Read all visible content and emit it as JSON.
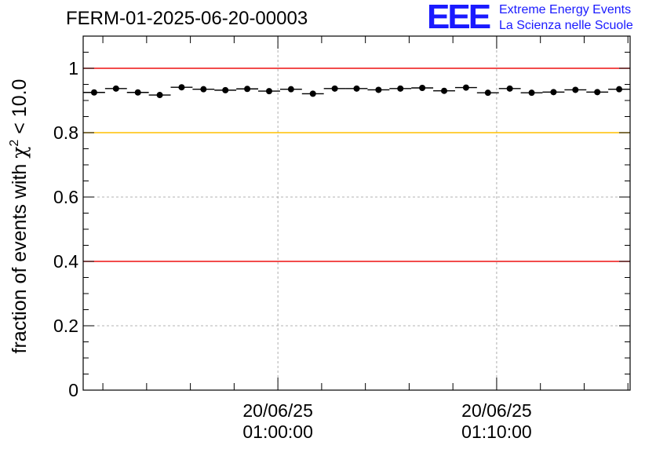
{
  "header": {
    "run_title": "FERM-01-2025-06-20-00003"
  },
  "logo": {
    "mark": "EEE",
    "line1": "Extreme Energy Events",
    "line2": "La Scienza nelle Scuole",
    "color": "#1a1aff"
  },
  "chart_data": {
    "type": "scatter",
    "title": "FERM-01-2025-06-20-00003",
    "ylabel_prefix": "fraction of events with ",
    "ylabel_symbol": "χ",
    "ylabel_superscript": "2",
    "ylabel_suffix": " < 10.0",
    "xlabel": "",
    "ylim": [
      0,
      1.1
    ],
    "xlim_minutes": [
      0,
      25
    ],
    "y_ticks": [
      {
        "value": 0,
        "label": "0"
      },
      {
        "value": 0.2,
        "label": "0.2"
      },
      {
        "value": 0.4,
        "label": "0.4"
      },
      {
        "value": 0.6,
        "label": "0.6"
      },
      {
        "value": 0.8,
        "label": "0.8"
      },
      {
        "value": 1,
        "label": "1"
      }
    ],
    "x_ticks": [
      {
        "minute": 8.9,
        "date": "20/06/25",
        "time": "01:00:00"
      },
      {
        "minute": 18.9,
        "date": "20/06/25",
        "time": "01:10:00"
      }
    ],
    "reference_lines": [
      {
        "value": 1.0,
        "color": "#ee1111"
      },
      {
        "value": 0.8,
        "color": "#ffc000"
      },
      {
        "value": 0.4,
        "color": "#ee1111"
      }
    ],
    "bin_width_minutes": 1,
    "series": [
      {
        "name": "fraction",
        "color": "#000000",
        "x": [
          0.5,
          1.5,
          2.5,
          3.5,
          4.5,
          5.5,
          6.5,
          7.5,
          8.5,
          9.5,
          10.5,
          11.5,
          12.5,
          13.5,
          14.5,
          15.5,
          16.5,
          17.5,
          18.5,
          19.5,
          20.5,
          21.5,
          22.5,
          23.5,
          24.5
        ],
        "values": [
          0.925,
          0.937,
          0.925,
          0.917,
          0.941,
          0.935,
          0.932,
          0.936,
          0.929,
          0.935,
          0.921,
          0.937,
          0.937,
          0.933,
          0.937,
          0.939,
          0.93,
          0.94,
          0.924,
          0.937,
          0.924,
          0.926,
          0.933,
          0.926,
          0.935
        ]
      }
    ]
  }
}
